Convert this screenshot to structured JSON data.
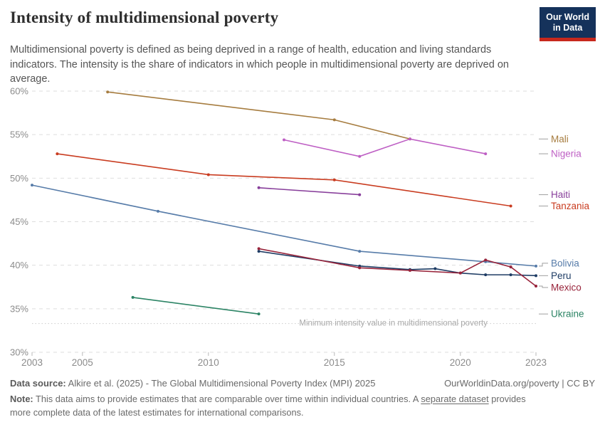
{
  "header": {
    "title": "Intensity of multidimensional poverty",
    "subtitle": "Multidimensional poverty is defined as being deprived in a range of health, education and living standards indicators. The intensity is the share of indicators in which people in multidimensional poverty are deprived on average."
  },
  "brand": {
    "logo_line1": "Our World",
    "logo_line2": "in Data",
    "logo_bg": "#15325B",
    "logo_red": "#C7281D"
  },
  "footer": {
    "datasource_label": "Data source:",
    "datasource_text": " Alkire et al. (2025) - The Global Multidimensional Poverty Index (MPI) 2025",
    "attribution": "OurWorldinData.org/poverty | CC BY",
    "note_label": "Note:",
    "note_before_link": " This data aims to provide estimates that are comparable over time within individual countries. A ",
    "note_link": "separate dataset",
    "note_after_link": " provides more complete data of the latest estimates for international comparisons."
  },
  "chart_data": {
    "type": "line",
    "title": "Intensity of multidimensional poverty",
    "xlabel": "",
    "ylabel": "",
    "xlim": [
      2003,
      2023
    ],
    "ylim": [
      30,
      60
    ],
    "x_ticks": [
      2003,
      2005,
      2010,
      2015,
      2020,
      2023
    ],
    "y_ticks": [
      30,
      35,
      40,
      45,
      50,
      55,
      60
    ],
    "y_tick_suffix": "%",
    "grid": "dashed-horizontal",
    "legend_position": "right-of-lines",
    "annotation": {
      "label": "Minimum intensity value in multidimensional poverty",
      "value": 33.3
    },
    "series": [
      {
        "name": "Mali",
        "color": "#A67C3F",
        "points": [
          [
            2006,
            59.9
          ],
          [
            2015,
            56.7
          ],
          [
            2018,
            54.5
          ]
        ]
      },
      {
        "name": "Nigeria",
        "color": "#BE5FC4",
        "points": [
          [
            2013,
            54.4
          ],
          [
            2016,
            52.5
          ],
          [
            2018,
            54.5
          ],
          [
            2021,
            52.8
          ]
        ]
      },
      {
        "name": "Haiti",
        "color": "#883F9B",
        "points": [
          [
            2012,
            48.9
          ],
          [
            2016,
            48.1
          ]
        ]
      },
      {
        "name": "Tanzania",
        "color": "#C93C20",
        "points": [
          [
            2004,
            52.8
          ],
          [
            2010,
            50.4
          ],
          [
            2015,
            49.8
          ],
          [
            2022,
            46.8
          ]
        ]
      },
      {
        "name": "Bolivia",
        "color": "#577CA9",
        "points": [
          [
            2003,
            49.2
          ],
          [
            2008,
            46.2
          ],
          [
            2016,
            41.6
          ],
          [
            2021,
            40.4
          ],
          [
            2023,
            39.9
          ]
        ]
      },
      {
        "name": "Peru",
        "color": "#1E3C64",
        "points": [
          [
            2012,
            41.6
          ],
          [
            2016,
            39.9
          ],
          [
            2018,
            39.5
          ],
          [
            2019,
            39.6
          ],
          [
            2020,
            39.1
          ],
          [
            2021,
            38.9
          ],
          [
            2022,
            38.9
          ],
          [
            2023,
            38.8
          ]
        ]
      },
      {
        "name": "Mexico",
        "color": "#98243B",
        "points": [
          [
            2012,
            41.9
          ],
          [
            2016,
            39.7
          ],
          [
            2018,
            39.4
          ],
          [
            2020,
            39.1
          ],
          [
            2021,
            40.6
          ],
          [
            2022,
            39.8
          ],
          [
            2023,
            37.6
          ]
        ]
      },
      {
        "name": "Ukraine",
        "color": "#2C8465",
        "points": [
          [
            2007,
            36.3
          ],
          [
            2012,
            34.4
          ]
        ]
      }
    ]
  }
}
